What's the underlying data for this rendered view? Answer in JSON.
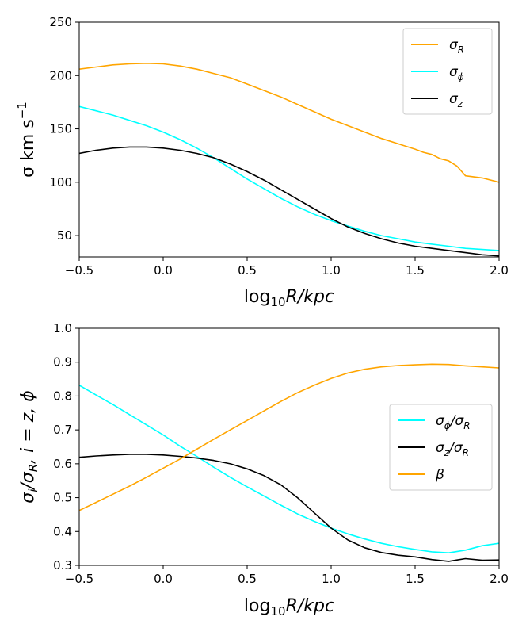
{
  "chart_data": [
    {
      "type": "line",
      "title": "",
      "xlabel": "log10 R/kpc",
      "xlabel_parts": {
        "pre": "log",
        "sub": "10",
        "post": "R/kpc"
      },
      "ylabel": "σ km s⁻¹",
      "ylabel_parts": {
        "pre": "σ km s",
        "sup": "−1"
      },
      "xlim": [
        -0.5,
        2.0
      ],
      "ylim": [
        30,
        250
      ],
      "xticks": [
        -0.5,
        0.0,
        0.5,
        1.0,
        1.5,
        2.0
      ],
      "xtick_labels": [
        "−0.5",
        "0.0",
        "0.5",
        "1.0",
        "1.5",
        "2.0"
      ],
      "yticks": [
        50,
        100,
        150,
        200,
        250
      ],
      "ytick_labels": [
        "50",
        "100",
        "150",
        "200",
        "250"
      ],
      "grid": false,
      "legend_position": "top-right",
      "series": [
        {
          "name": "σR",
          "legend": {
            "base": "σ",
            "sub": "R"
          },
          "color": "#FFA500",
          "x": [
            -0.5,
            -0.4,
            -0.3,
            -0.2,
            -0.1,
            0.0,
            0.1,
            0.2,
            0.3,
            0.4,
            0.5,
            0.6,
            0.7,
            0.8,
            0.9,
            1.0,
            1.1,
            1.2,
            1.3,
            1.4,
            1.5,
            1.55,
            1.6,
            1.65,
            1.7,
            1.75,
            1.8,
            1.85,
            1.9,
            2.0
          ],
          "values": [
            206,
            208,
            210,
            211,
            211.5,
            211,
            209,
            206,
            202,
            198,
            192,
            186,
            180,
            173,
            166,
            159,
            153,
            147,
            141,
            136,
            131,
            128,
            126,
            122,
            120,
            115,
            106,
            105,
            104,
            100
          ]
        },
        {
          "name": "σφ",
          "legend": {
            "base": "σ",
            "sub": "ϕ"
          },
          "color": "#00FFFF",
          "x": [
            -0.5,
            -0.4,
            -0.3,
            -0.2,
            -0.1,
            0.0,
            0.1,
            0.2,
            0.3,
            0.4,
            0.5,
            0.6,
            0.7,
            0.8,
            0.9,
            1.0,
            1.1,
            1.2,
            1.3,
            1.4,
            1.5,
            1.6,
            1.7,
            1.8,
            1.9,
            2.0
          ],
          "values": [
            171,
            167,
            163,
            158,
            153,
            147,
            140,
            132,
            123,
            113,
            103,
            94,
            85,
            77,
            70,
            64,
            59,
            54,
            50,
            47,
            44,
            42,
            40,
            38,
            37,
            36
          ]
        },
        {
          "name": "σz",
          "legend": {
            "base": "σ",
            "sub": "z"
          },
          "color": "#000000",
          "x": [
            -0.5,
            -0.4,
            -0.3,
            -0.2,
            -0.1,
            0.0,
            0.1,
            0.2,
            0.3,
            0.4,
            0.5,
            0.6,
            0.7,
            0.8,
            0.9,
            1.0,
            1.1,
            1.2,
            1.3,
            1.4,
            1.5,
            1.6,
            1.7,
            1.8,
            1.9,
            2.0
          ],
          "values": [
            127,
            130,
            132,
            133,
            133,
            132,
            130,
            127,
            123,
            117,
            110,
            102,
            93,
            84,
            75,
            66,
            58,
            52,
            47,
            43,
            40,
            38,
            36,
            34,
            32,
            31
          ]
        }
      ]
    },
    {
      "type": "line",
      "title": "",
      "xlabel": "log10 R/kpc",
      "xlabel_parts": {
        "pre": "log",
        "sub": "10",
        "post": "R/kpc"
      },
      "ylabel": "σi/σR, i = z, ϕ",
      "ylabel_parts": {
        "pre": "σ",
        "sub1": "i",
        "mid": "/σ",
        "sub2": "R",
        "post": ", i = z, ϕ"
      },
      "xlim": [
        -0.5,
        2.0
      ],
      "ylim": [
        0.3,
        1.0
      ],
      "xticks": [
        -0.5,
        0.0,
        0.5,
        1.0,
        1.5,
        2.0
      ],
      "xtick_labels": [
        "−0.5",
        "0.0",
        "0.5",
        "1.0",
        "1.5",
        "2.0"
      ],
      "yticks": [
        0.3,
        0.4,
        0.5,
        0.6,
        0.7,
        0.8,
        0.9,
        1.0
      ],
      "ytick_labels": [
        "0.3",
        "0.4",
        "0.5",
        "0.6",
        "0.7",
        "0.8",
        "0.9",
        "1.0"
      ],
      "grid": false,
      "legend_position": "center-right",
      "series": [
        {
          "name": "σφ/σR",
          "legend": {
            "base": "σ",
            "sub": "ϕ",
            "base2": "/σ",
            "sub2": "R"
          },
          "color": "#00FFFF",
          "x": [
            -0.5,
            -0.4,
            -0.3,
            -0.2,
            -0.1,
            0.0,
            0.1,
            0.2,
            0.3,
            0.4,
            0.5,
            0.6,
            0.7,
            0.8,
            0.9,
            1.0,
            1.1,
            1.2,
            1.3,
            1.4,
            1.5,
            1.6,
            1.7,
            1.8,
            1.9,
            2.0
          ],
          "values": [
            0.832,
            0.803,
            0.775,
            0.745,
            0.715,
            0.685,
            0.652,
            0.622,
            0.59,
            0.56,
            0.532,
            0.505,
            0.478,
            0.452,
            0.43,
            0.41,
            0.393,
            0.378,
            0.365,
            0.355,
            0.347,
            0.34,
            0.337,
            0.345,
            0.358,
            0.365
          ]
        },
        {
          "name": "σz/σR",
          "legend": {
            "base": "σ",
            "sub": "z",
            "base2": "/σ",
            "sub2": "R"
          },
          "color": "#000000",
          "x": [
            -0.5,
            -0.4,
            -0.3,
            -0.2,
            -0.1,
            0.0,
            0.1,
            0.2,
            0.3,
            0.4,
            0.5,
            0.6,
            0.7,
            0.8,
            0.9,
            1.0,
            1.1,
            1.2,
            1.3,
            1.4,
            1.5,
            1.6,
            1.7,
            1.75,
            1.8,
            1.9,
            2.0
          ],
          "values": [
            0.619,
            0.623,
            0.626,
            0.628,
            0.628,
            0.626,
            0.622,
            0.617,
            0.61,
            0.6,
            0.585,
            0.565,
            0.538,
            0.5,
            0.455,
            0.41,
            0.375,
            0.352,
            0.338,
            0.33,
            0.325,
            0.317,
            0.312,
            0.316,
            0.32,
            0.315,
            0.316
          ]
        },
        {
          "name": "β",
          "legend": {
            "base": "β"
          },
          "color": "#FFA500",
          "x": [
            -0.5,
            -0.4,
            -0.3,
            -0.2,
            -0.1,
            0.0,
            0.1,
            0.2,
            0.3,
            0.4,
            0.5,
            0.6,
            0.7,
            0.8,
            0.9,
            1.0,
            1.1,
            1.2,
            1.3,
            1.4,
            1.5,
            1.6,
            1.7,
            1.8,
            1.9,
            2.0
          ],
          "values": [
            0.462,
            0.486,
            0.51,
            0.534,
            0.56,
            0.587,
            0.614,
            0.643,
            0.672,
            0.7,
            0.728,
            0.756,
            0.784,
            0.81,
            0.832,
            0.852,
            0.868,
            0.879,
            0.886,
            0.89,
            0.892,
            0.894,
            0.893,
            0.889,
            0.886,
            0.883
          ]
        }
      ]
    }
  ]
}
